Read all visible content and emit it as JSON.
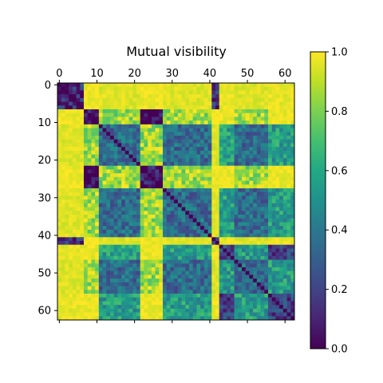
{
  "chart_data": {
    "type": "heatmap",
    "title": "Mutual visibility",
    "size": 63,
    "x_ticks": [
      0,
      10,
      20,
      30,
      40,
      50,
      60
    ],
    "y_ticks": [
      0,
      10,
      20,
      30,
      40,
      50,
      60
    ],
    "x_tick_position": "top",
    "colormap": "viridis",
    "colorbar": {
      "vmin": 0.0,
      "vmax": 1.0,
      "ticks": [
        "0.0",
        "0.2",
        "0.4",
        "0.6",
        "0.8",
        "1.0"
      ],
      "position": "right"
    },
    "blocks": [
      {
        "start": 0,
        "end": 2,
        "group": "A"
      },
      {
        "start": 3,
        "end": 6,
        "group": "A"
      },
      {
        "start": 7,
        "end": 10,
        "group": "B"
      },
      {
        "start": 11,
        "end": 21,
        "group": "C"
      },
      {
        "start": 22,
        "end": 27,
        "group": "B"
      },
      {
        "start": 28,
        "end": 40,
        "group": "C"
      },
      {
        "start": 41,
        "end": 42,
        "group": "A"
      },
      {
        "start": 43,
        "end": 46,
        "group": "D"
      },
      {
        "start": 47,
        "end": 55,
        "group": "C"
      },
      {
        "start": 56,
        "end": 62,
        "group": "D"
      }
    ],
    "group_levels": {
      "A-A": 0.15,
      "B-B": 0.05,
      "C-C": 0.35,
      "D-D": 0.2,
      "A-B": 0.98,
      "A-C": 0.95,
      "A-D": 0.97,
      "B-C": 0.85,
      "B-D": 0.97,
      "C-D": 0.55
    },
    "diagonal_value": 0.0
  }
}
